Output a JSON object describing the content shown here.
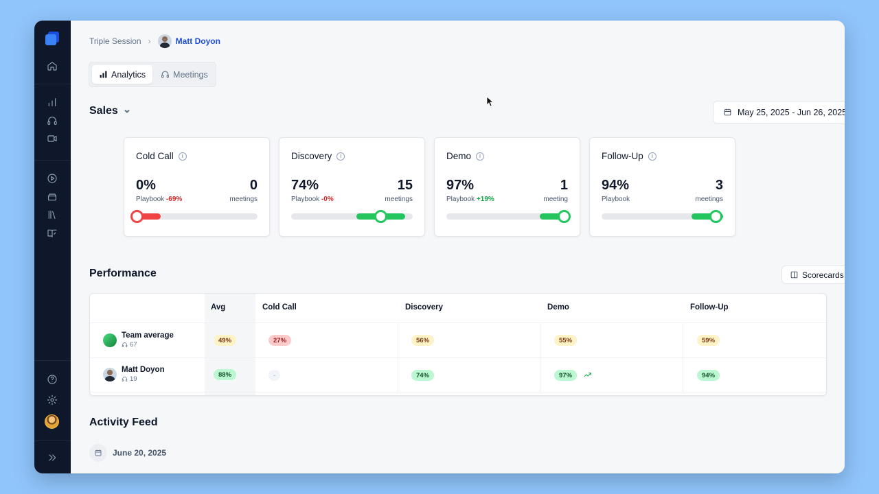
{
  "breadcrumb": {
    "root": "Triple Session",
    "user": "Matt Doyon"
  },
  "tabs": [
    {
      "label": "Analytics",
      "icon": "bar-chart-icon",
      "active": true
    },
    {
      "label": "Meetings",
      "icon": "headset-icon",
      "active": false
    }
  ],
  "sales": {
    "title": "Sales",
    "date_range": "May 25, 2025 - Jun 26, 2025"
  },
  "cards": [
    {
      "title": "Cold Call",
      "pct": "0%",
      "sub_label": "Playbook",
      "delta": "-69%",
      "count": "0",
      "unit": "meetings",
      "progress": 0.0
    },
    {
      "title": "Discovery",
      "pct": "74%",
      "sub_label": "Playbook",
      "delta": "-0%",
      "count": "15",
      "unit": "meetings",
      "progress": 0.74
    },
    {
      "title": "Demo",
      "pct": "97%",
      "sub_label": "Playbook",
      "delta": "+19%",
      "count": "1",
      "unit": "meeting",
      "progress": 0.97
    },
    {
      "title": "Follow-Up",
      "pct": "94%",
      "sub_label": "Playbook",
      "delta": "",
      "count": "3",
      "unit": "meetings",
      "progress": 0.94
    }
  ],
  "performance": {
    "title": "Performance",
    "scorecards_label": "Scorecards",
    "columns": [
      "Avg",
      "Cold Call",
      "Discovery",
      "Demo",
      "Follow-Up"
    ],
    "rows": [
      {
        "name": "Team average",
        "count": "67",
        "values": [
          "49%",
          "27%",
          "56%",
          "55%",
          "59%"
        ]
      },
      {
        "name": "Matt Doyon",
        "count": "19",
        "values": [
          "88%",
          "-",
          "74%",
          "97%",
          "94%"
        ]
      }
    ]
  },
  "activity": {
    "title": "Activity Feed",
    "date": "June 20, 2025"
  },
  "colors": {
    "accent": "#1d4ed8",
    "success": "#22c55e",
    "danger": "#ef4444",
    "sidebar": "#0f172a"
  }
}
